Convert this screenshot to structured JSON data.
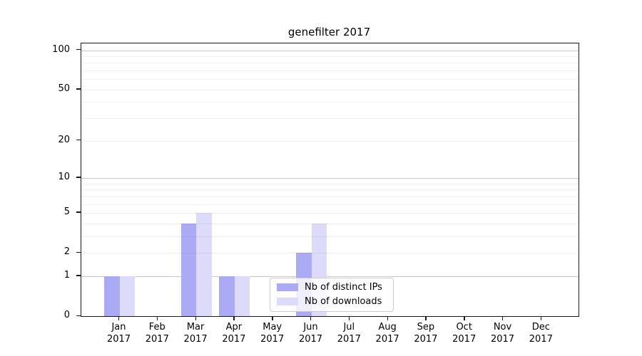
{
  "title": "genefilter 2017",
  "chart_data": {
    "type": "bar",
    "title": "genefilter 2017",
    "y_scale": "log1p",
    "categories": [
      "Jan",
      "Feb",
      "Mar",
      "Apr",
      "May",
      "Jun",
      "Jul",
      "Aug",
      "Sep",
      "Oct",
      "Nov",
      "Dec"
    ],
    "category_year": "2017",
    "series": [
      {
        "name": "Nb of distinct IPs",
        "color": "#aaaaf5",
        "values": [
          1,
          0,
          4,
          1,
          0,
          2,
          0,
          0,
          0,
          0,
          0,
          0
        ]
      },
      {
        "name": "Nb of downloads",
        "color": "#dcdcfa",
        "values": [
          1,
          0,
          5,
          1,
          0,
          4,
          0,
          0,
          0,
          0,
          0,
          0
        ]
      }
    ],
    "yticks": [
      100,
      50,
      20,
      10,
      5,
      2,
      1,
      0
    ],
    "minor_grid_values": [
      2,
      3,
      4,
      5,
      6,
      7,
      8,
      9,
      20,
      30,
      40,
      50,
      60,
      70,
      80,
      90
    ],
    "major_grid_values": [
      1,
      10,
      100
    ],
    "ylim": [
      0,
      112
    ],
    "grid": "horizontal log minor lines",
    "legend_position": "inside-bottom-center-right",
    "colors": {
      "axis": "#1a1a1a",
      "grid_major": "#c9c9c9",
      "grid_minor": "#f0f0f0",
      "legend_border": "#cccccc",
      "legend_background": "rgba(255,255,255,0.8)"
    }
  }
}
